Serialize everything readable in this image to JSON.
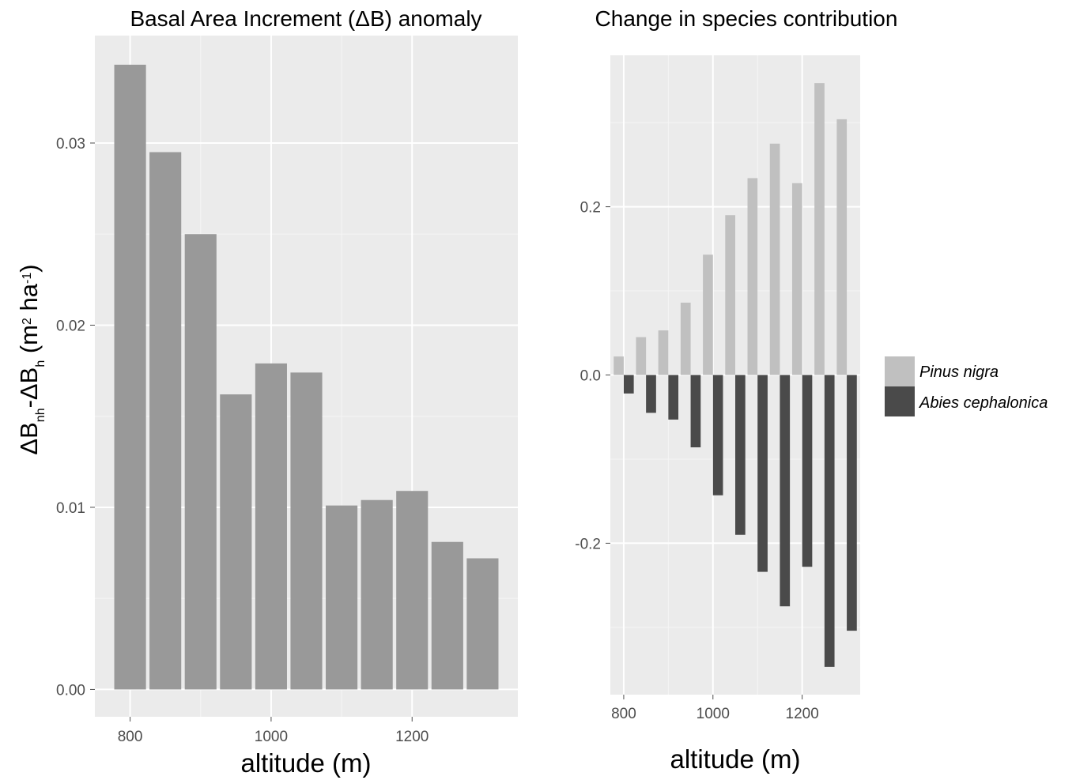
{
  "chart_data": [
    {
      "type": "bar",
      "title": "Basal Area Increment (ΔB) anomaly",
      "xlabel": "altitude (m)",
      "ylabel": {
        "parts": [
          {
            "text": "ΔB",
            "style": "normal"
          },
          {
            "text": "nh",
            "style": "sub"
          },
          {
            "text": "-ΔB",
            "style": "normal"
          },
          {
            "text": "h",
            "style": "sub"
          },
          {
            "text": " (m",
            "style": "normal"
          },
          {
            "text": "2",
            "style": "sup"
          },
          {
            "text": " ha",
            "style": "normal"
          },
          {
            "text": "-1",
            "style": "sup"
          },
          {
            "text": ")",
            "style": "normal"
          }
        ]
      },
      "x": [
        800,
        850,
        900,
        950,
        1000,
        1050,
        1100,
        1150,
        1200,
        1250,
        1300
      ],
      "values": [
        0.0343,
        0.0295,
        0.025,
        0.0162,
        0.0179,
        0.0174,
        0.0101,
        0.0104,
        0.0109,
        0.0081,
        0.0072
      ],
      "xlim": [
        750,
        1350
      ],
      "ylim": [
        -0.0015,
        0.0359
      ],
      "xticks": [
        800,
        1000,
        1200
      ],
      "yticks": [
        0.0,
        0.01,
        0.02,
        0.03
      ],
      "ytick_labels": [
        "0.00",
        "0.01",
        "0.02",
        "0.03"
      ],
      "grid": true,
      "bar_color": "#999999",
      "panel_background": "#ebebeb"
    },
    {
      "type": "bar",
      "title": "Change in species contribution",
      "xlabel": "altitude (m)",
      "x": [
        800,
        850,
        900,
        950,
        1000,
        1050,
        1100,
        1150,
        1200,
        1250,
        1300
      ],
      "series": [
        {
          "name": "Pinus nigra",
          "color": "#c0c0c0",
          "values": [
            0.022,
            0.045,
            0.053,
            0.086,
            0.143,
            0.19,
            0.234,
            0.275,
            0.228,
            0.347,
            0.304
          ]
        },
        {
          "name": "Abies cephalonica",
          "color": "#4a4a4a",
          "values": [
            -0.022,
            -0.045,
            -0.053,
            -0.086,
            -0.143,
            -0.19,
            -0.234,
            -0.275,
            -0.228,
            -0.347,
            -0.304
          ]
        }
      ],
      "xlim": [
        770,
        1330
      ],
      "ylim": [
        -0.38,
        0.38
      ],
      "xticks": [
        800,
        1000,
        1200
      ],
      "yticks": [
        -0.2,
        0.0,
        0.2
      ],
      "ytick_labels": [
        "-0.2",
        "0.0",
        "0.2"
      ],
      "grid": true,
      "legend": "right",
      "panel_background": "#ebebeb"
    }
  ]
}
